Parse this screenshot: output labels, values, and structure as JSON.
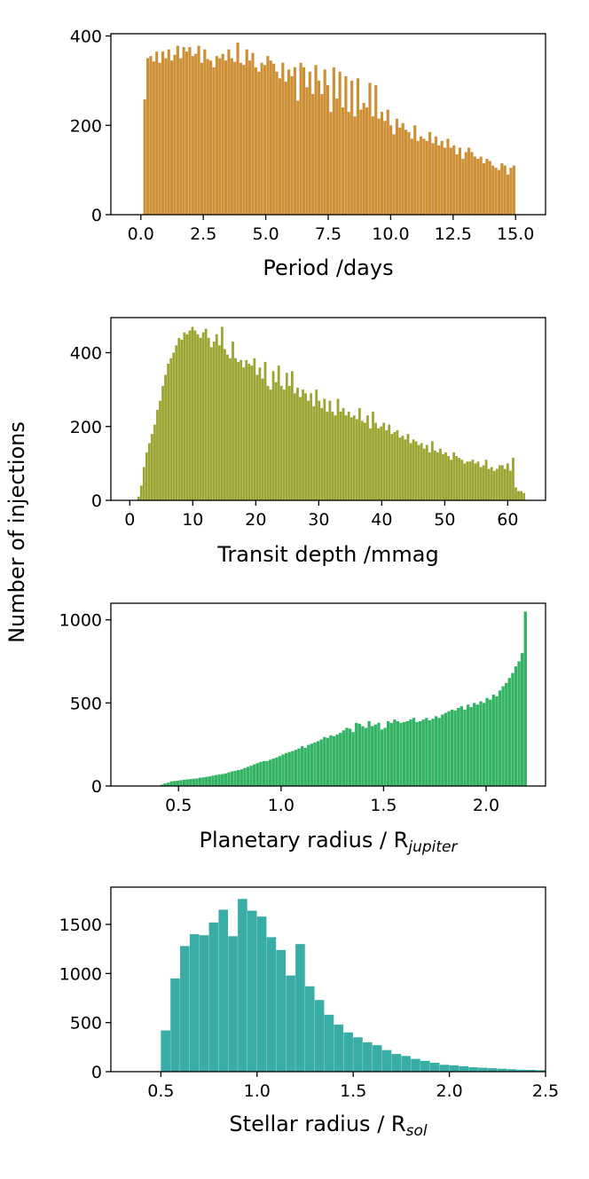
{
  "shared_ylabel": "Number of injections",
  "chart_data": [
    {
      "type": "bar",
      "xlabel": "Period /days",
      "xlim": [
        -1.2,
        16.2
      ],
      "ylim": [
        0,
        405
      ],
      "xticks": [
        "0.0",
        "2.5",
        "5.0",
        "7.5",
        "10.0",
        "12.5",
        "15.0"
      ],
      "xtick_values": [
        0,
        2.5,
        5,
        7.5,
        10,
        12.5,
        15
      ],
      "yticks": [
        "0",
        "200",
        "400"
      ],
      "ytick_values": [
        0,
        200,
        400
      ],
      "color": "#cd8e34",
      "bin_range": [
        0.1,
        15
      ],
      "values": [
        258,
        350,
        355,
        343,
        365,
        340,
        365,
        350,
        370,
        345,
        358,
        378,
        350,
        375,
        365,
        375,
        355,
        360,
        378,
        340,
        370,
        348,
        345,
        330,
        355,
        350,
        360,
        345,
        370,
        350,
        342,
        385,
        340,
        335,
        370,
        345,
        362,
        330,
        320,
        340,
        335,
        355,
        345,
        338,
        320,
        305,
        340,
        298,
        325,
        310,
        330,
        255,
        340,
        330,
        285,
        320,
        270,
        335,
        300,
        270,
        325,
        290,
        230,
        330,
        260,
        320,
        240,
        310,
        230,
        300,
        220,
        305,
        235,
        250,
        240,
        295,
        220,
        290,
        215,
        230,
        210,
        235,
        200,
        180,
        215,
        195,
        205,
        190,
        185,
        170,
        200,
        165,
        175,
        170,
        165,
        185,
        160,
        175,
        155,
        165,
        150,
        170,
        150,
        155,
        135,
        150,
        125,
        140,
        150,
        140,
        130,
        125,
        130,
        115,
        125,
        120,
        110,
        105,
        100,
        115,
        110,
        90,
        105,
        110
      ]
    },
    {
      "type": "bar",
      "xlabel": "Transit depth /mmag",
      "xlim": [
        -3,
        66
      ],
      "ylim": [
        0,
        495
      ],
      "xticks": [
        "0",
        "10",
        "20",
        "30",
        "40",
        "50",
        "60"
      ],
      "xtick_values": [
        0,
        10,
        20,
        30,
        40,
        50,
        60
      ],
      "yticks": [
        "0",
        "200",
        "400"
      ],
      "ytick_values": [
        0,
        200,
        400
      ],
      "color": "#9ba430",
      "bin_range": [
        1.2,
        62.8
      ],
      "values": [
        10,
        40,
        90,
        130,
        155,
        180,
        205,
        245,
        270,
        310,
        340,
        370,
        385,
        400,
        420,
        440,
        435,
        455,
        450,
        460,
        470,
        460,
        450,
        440,
        455,
        465,
        440,
        415,
        430,
        450,
        420,
        470,
        410,
        395,
        385,
        430,
        385,
        375,
        380,
        360,
        380,
        370,
        365,
        385,
        340,
        360,
        330,
        375,
        310,
        300,
        350,
        320,
        365,
        310,
        300,
        345,
        310,
        350,
        290,
        305,
        280,
        300,
        290,
        270,
        290,
        255,
        300,
        270,
        250,
        275,
        240,
        270,
        240,
        230,
        275,
        240,
        250,
        230,
        240,
        225,
        230,
        220,
        250,
        215,
        210,
        230,
        195,
        240,
        210,
        195,
        200,
        210,
        190,
        205,
        180,
        185,
        190,
        170,
        175,
        165,
        180,
        155,
        165,
        160,
        150,
        155,
        140,
        150,
        130,
        160,
        135,
        130,
        140,
        125,
        130,
        120,
        110,
        130,
        120,
        115,
        110,
        100,
        105,
        105,
        110,
        100,
        105,
        90,
        95,
        110,
        85,
        90,
        80,
        85,
        95,
        95,
        85,
        100,
        80,
        115,
        35,
        25,
        25,
        20
      ]
    },
    {
      "type": "bar",
      "xlabel": "Planetary radius / R",
      "xlabel_subscript": "jupiter",
      "xlim": [
        0.17,
        2.29
      ],
      "ylim": [
        0,
        1100
      ],
      "xticks": [
        "0.5",
        "1.0",
        "1.5",
        "2.0"
      ],
      "xtick_values": [
        0.5,
        1.0,
        1.5,
        2.0
      ],
      "yticks": [
        "0",
        "500",
        "1000"
      ],
      "ytick_values": [
        0,
        500,
        1000
      ],
      "color": "#32b363",
      "bin_range": [
        0.1,
        2.2
      ],
      "values": [
        0,
        0,
        0,
        0,
        0,
        0,
        0,
        0,
        0,
        0,
        0,
        0,
        0,
        0,
        0,
        0,
        0,
        0,
        0,
        0,
        8,
        15,
        20,
        28,
        30,
        32,
        35,
        38,
        40,
        42,
        44,
        46,
        50,
        52,
        55,
        58,
        62,
        66,
        70,
        72,
        76,
        82,
        88,
        92,
        96,
        100,
        108,
        115,
        122,
        130,
        138,
        145,
        150,
        150,
        158,
        165,
        172,
        180,
        190,
        198,
        205,
        210,
        218,
        225,
        240,
        230,
        248,
        255,
        262,
        270,
        280,
        295,
        290,
        305,
        300,
        310,
        320,
        335,
        350,
        345,
        325,
        380,
        375,
        360,
        350,
        390,
        360,
        370,
        380,
        340,
        350,
        390,
        380,
        400,
        390,
        380,
        385,
        390,
        400,
        410,
        385,
        390,
        400,
        410,
        395,
        405,
        420,
        410,
        430,
        440,
        450,
        460,
        455,
        470,
        480,
        460,
        490,
        475,
        500,
        490,
        510,
        500,
        530,
        520,
        550,
        540,
        575,
        600,
        620,
        650,
        680,
        720,
        750,
        800,
        1050
      ]
    },
    {
      "type": "bar",
      "xlabel": "Stellar radius / R",
      "xlabel_subscript": "sol",
      "xlim": [
        0.24,
        2.5
      ],
      "ylim": [
        0,
        1880
      ],
      "xticks": [
        "0.5",
        "1.0",
        "1.5",
        "2.0",
        "2.5"
      ],
      "xtick_values": [
        0.5,
        1.0,
        1.5,
        2.0,
        2.5
      ],
      "yticks": [
        "0",
        "500",
        "1000",
        "1500"
      ],
      "ytick_values": [
        0,
        500,
        1000,
        1500
      ],
      "color": "#38ada5",
      "bin_range": [
        0.5,
        2.5
      ],
      "values": [
        420,
        950,
        1280,
        1400,
        1390,
        1520,
        1650,
        1380,
        1760,
        1640,
        1580,
        1370,
        1240,
        980,
        1300,
        870,
        730,
        580,
        480,
        400,
        350,
        300,
        270,
        220,
        180,
        160,
        130,
        110,
        90,
        70,
        65,
        55,
        45,
        40,
        35,
        30,
        25,
        20,
        18,
        15
      ]
    }
  ]
}
